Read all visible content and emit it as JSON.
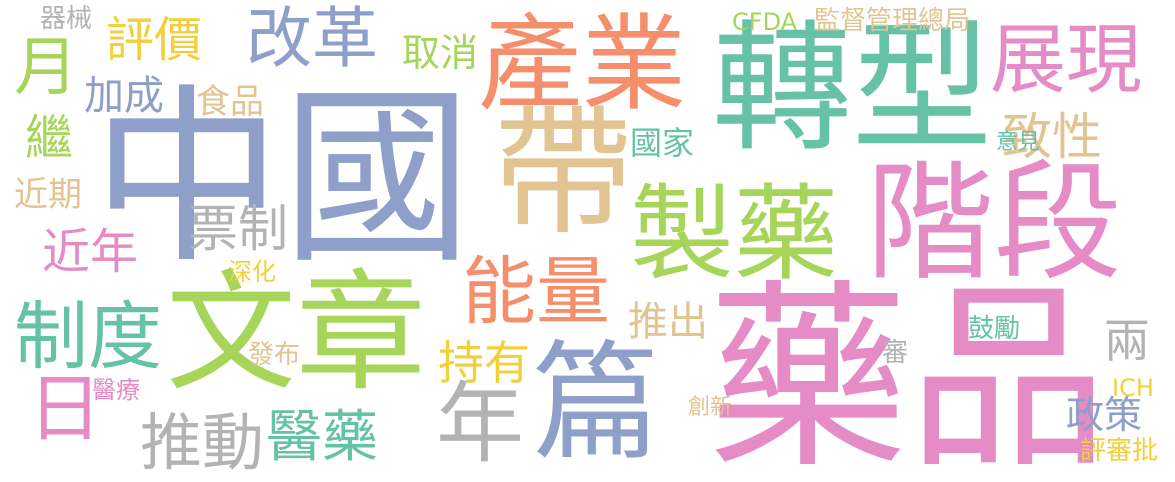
{
  "colors": {
    "blue": "#8E9FC9",
    "green": "#A6D55A",
    "pink": "#E58BC5",
    "orange": "#F58E6B",
    "teal": "#66C2A6",
    "tan": "#E2C392",
    "gray": "#B3B3B3",
    "yellow": "#F2D03B"
  },
  "words": {
    "zhongguo": "中國",
    "yaopin": "藥品",
    "zhuanxing": "轉型",
    "wenzhang": "文章",
    "jieduan": "階段",
    "chanye": "產業",
    "dai": "帶",
    "zhiyao": "製藥",
    "pian": "篇",
    "gaige": "改革",
    "zhanxian": "展現",
    "nengliang": "能量",
    "zhidu": "制度",
    "nian": "年",
    "tuidong": "推動",
    "yue": "月",
    "ri": "日",
    "yiyao": "醫藥",
    "piaozhi": "票制",
    "jinnian": "近年",
    "pingjia": "評價",
    "zhixing": "致性",
    "chiyou": "持有",
    "tuichu": "推出",
    "liang": "兩",
    "zhengce": "政策",
    "jiacheng": "加成",
    "quxiao": "取消",
    "guojia": "國家",
    "ji": "繼",
    "jinqi": "近期",
    "shipin": "食品",
    "qixie": "器械",
    "cfda": "CFDA",
    "jiandu": "監督管理總局",
    "yijian": "意見",
    "shenhua": "深化",
    "fabu": "發布",
    "yiliao": "醫療",
    "chuangxin": "創新",
    "guli": "鼓勵",
    "shen": "審",
    "ich": "ICH",
    "pingshenpi": "評審批"
  }
}
